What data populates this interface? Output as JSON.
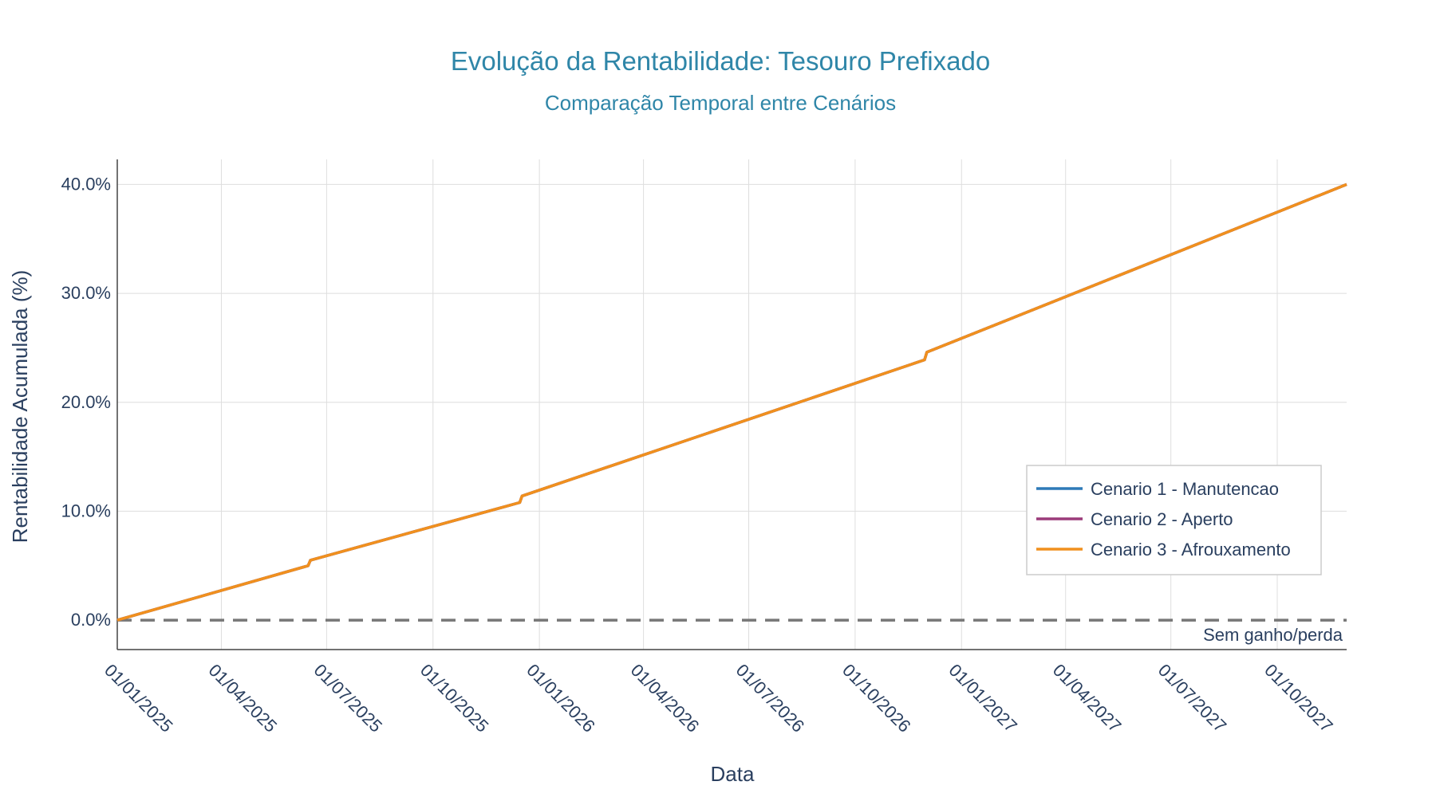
{
  "chart_data": {
    "type": "line",
    "title": "Evolução da Rentabilidade: Tesouro Prefixado",
    "subtitle": "Comparação Temporal entre Cenários",
    "xlabel": "Data",
    "ylabel": "Rentabilidade Acumulada (%)",
    "xlim": [
      "2025-01-01",
      "2027-11-30"
    ],
    "ylim": [
      -2.7,
      42.3
    ],
    "x_ticks": [
      "01/01/2025",
      "01/04/2025",
      "01/07/2025",
      "01/10/2025",
      "01/01/2026",
      "01/04/2026",
      "01/07/2026",
      "01/10/2026",
      "01/01/2027",
      "01/04/2027",
      "01/07/2027",
      "01/10/2027"
    ],
    "x_tick_dates": [
      "2025-01-01",
      "2025-04-01",
      "2025-07-01",
      "2025-10-01",
      "2026-01-01",
      "2026-04-01",
      "2026-07-01",
      "2026-10-01",
      "2027-01-01",
      "2027-04-01",
      "2027-07-01",
      "2027-10-01"
    ],
    "y_ticks": [
      0,
      10,
      20,
      30,
      40
    ],
    "y_tick_labels": [
      "0.0%",
      "10.0%",
      "20.0%",
      "30.0%",
      "40.0%"
    ],
    "grid": true,
    "legend_position": "bottom-right",
    "series": [
      {
        "name": "Cenario 1 - Manutencao",
        "color": "#2e7ab8",
        "x": [
          "2025-01-01",
          "2025-06-15",
          "2025-06-17",
          "2025-12-15",
          "2025-12-17",
          "2026-11-30",
          "2026-12-02",
          "2027-11-30"
        ],
        "y": [
          0.0,
          5.0,
          5.5,
          10.8,
          11.4,
          23.9,
          24.6,
          40.0
        ]
      },
      {
        "name": "Cenario 2 - Aperto",
        "color": "#9b3b7a",
        "x": [
          "2025-01-01",
          "2025-06-15",
          "2025-06-17",
          "2025-12-15",
          "2025-12-17",
          "2026-11-30",
          "2026-12-02",
          "2027-11-30"
        ],
        "y": [
          0.0,
          5.0,
          5.5,
          10.8,
          11.4,
          23.9,
          24.6,
          40.0
        ]
      },
      {
        "name": "Cenario 3 - Afrouxamento",
        "color": "#f0901e",
        "x": [
          "2025-01-01",
          "2025-06-15",
          "2025-06-17",
          "2025-12-15",
          "2025-12-17",
          "2026-11-30",
          "2026-12-02",
          "2027-11-30"
        ],
        "y": [
          0.0,
          5.0,
          5.5,
          10.8,
          11.4,
          23.9,
          24.6,
          40.0
        ]
      }
    ],
    "reference_line": {
      "y": 0,
      "label": "Sem ganho/perda",
      "color": "#777777",
      "style": "dashed"
    }
  },
  "colors": {
    "title": "#2f86a8",
    "axis_text": "#2a3f5f",
    "grid": "#dedede",
    "axis_line": "#444444"
  }
}
